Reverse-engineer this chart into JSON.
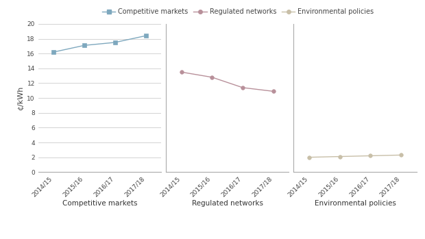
{
  "years": [
    "2014/15",
    "2015/16",
    "2016/17",
    "2017/18"
  ],
  "competitive_markets": [
    16.2,
    17.1,
    17.5,
    18.4
  ],
  "regulated_networks": [
    13.5,
    12.8,
    11.4,
    10.9
  ],
  "environmental_policies": [
    2.0,
    2.1,
    2.2,
    2.3
  ],
  "color_competitive": "#7ea8be",
  "color_regulated": "#b8909a",
  "color_environmental": "#c8bfa8",
  "ylim": [
    0,
    20
  ],
  "yticks": [
    0,
    2,
    4,
    6,
    8,
    10,
    12,
    14,
    16,
    18,
    20
  ],
  "ylabel": "¢/kWh",
  "legend_labels": [
    "Competitive markets",
    "Regulated networks",
    "Environmental policies"
  ],
  "group_labels": [
    "Competitive markets",
    "Regulated networks",
    "Environmental policies"
  ],
  "background_color": "#ffffff",
  "grid_color": "#cccccc"
}
